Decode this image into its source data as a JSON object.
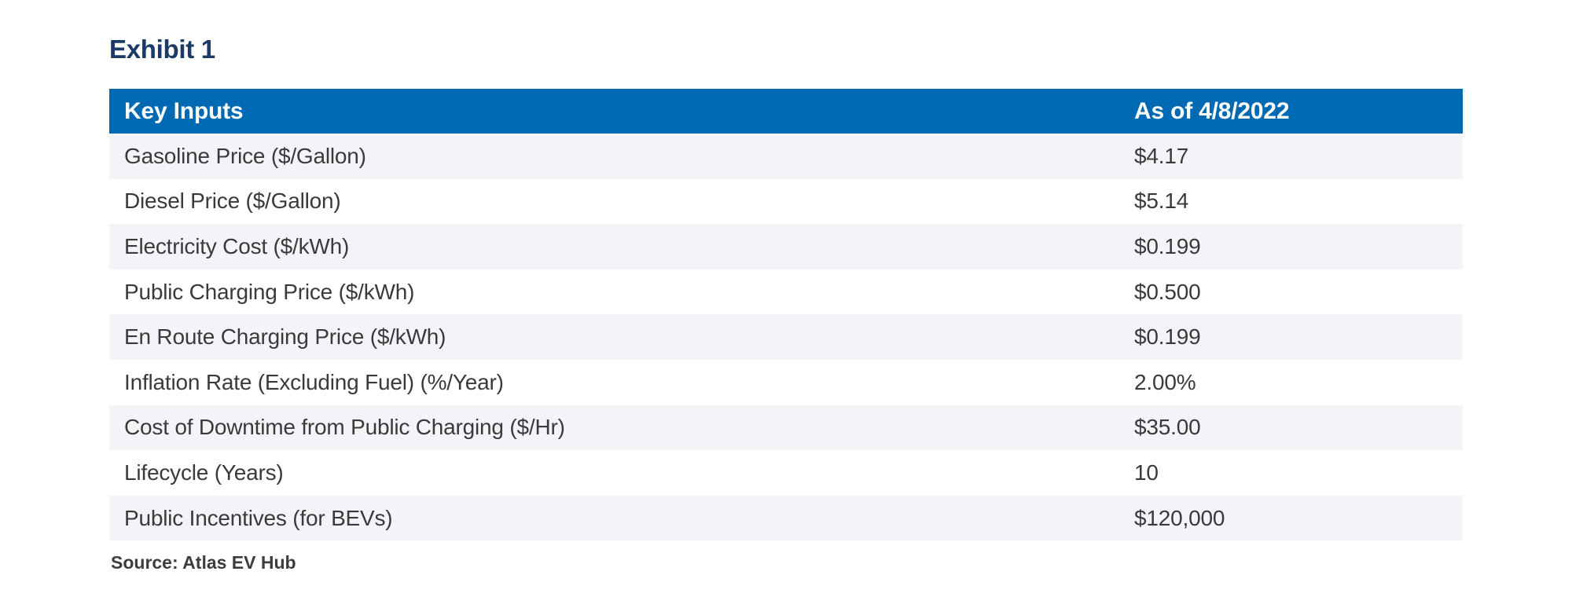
{
  "exhibit": {
    "title": "Exhibit 1"
  },
  "table": {
    "header": {
      "label": "Key Inputs",
      "value": "As of 4/8/2022"
    },
    "rows": [
      {
        "label": "Gasoline Price ($/Gallon)",
        "value": "$4.17"
      },
      {
        "label": "Diesel Price ($/Gallon)",
        "value": "$5.14"
      },
      {
        "label": "Electricity Cost ($/kWh)",
        "value": "$0.199"
      },
      {
        "label": "Public Charging Price ($/kWh)",
        "value": "$0.500"
      },
      {
        "label": "En Route Charging Price ($/kWh)",
        "value": "$0.199"
      },
      {
        "label": "Inflation Rate (Excluding Fuel) (%/Year)",
        "value": "2.00%"
      },
      {
        "label": "Cost of Downtime from Public Charging ($/Hr)",
        "value": "$35.00"
      },
      {
        "label": "Lifecycle (Years)",
        "value": "10"
      },
      {
        "label": "Public Incentives (for BEVs)",
        "value": "$120,000"
      }
    ]
  },
  "source": {
    "text": "Source: Atlas EV Hub"
  },
  "colors": {
    "header_background": "#0069b4",
    "header_text": "#ffffff",
    "title_text": "#1b3a66",
    "row_alt_background": "#f2f4f7",
    "row_background": "#ffffff",
    "body_text": "#3a3a3a",
    "source_text": "#3d3d3d"
  }
}
